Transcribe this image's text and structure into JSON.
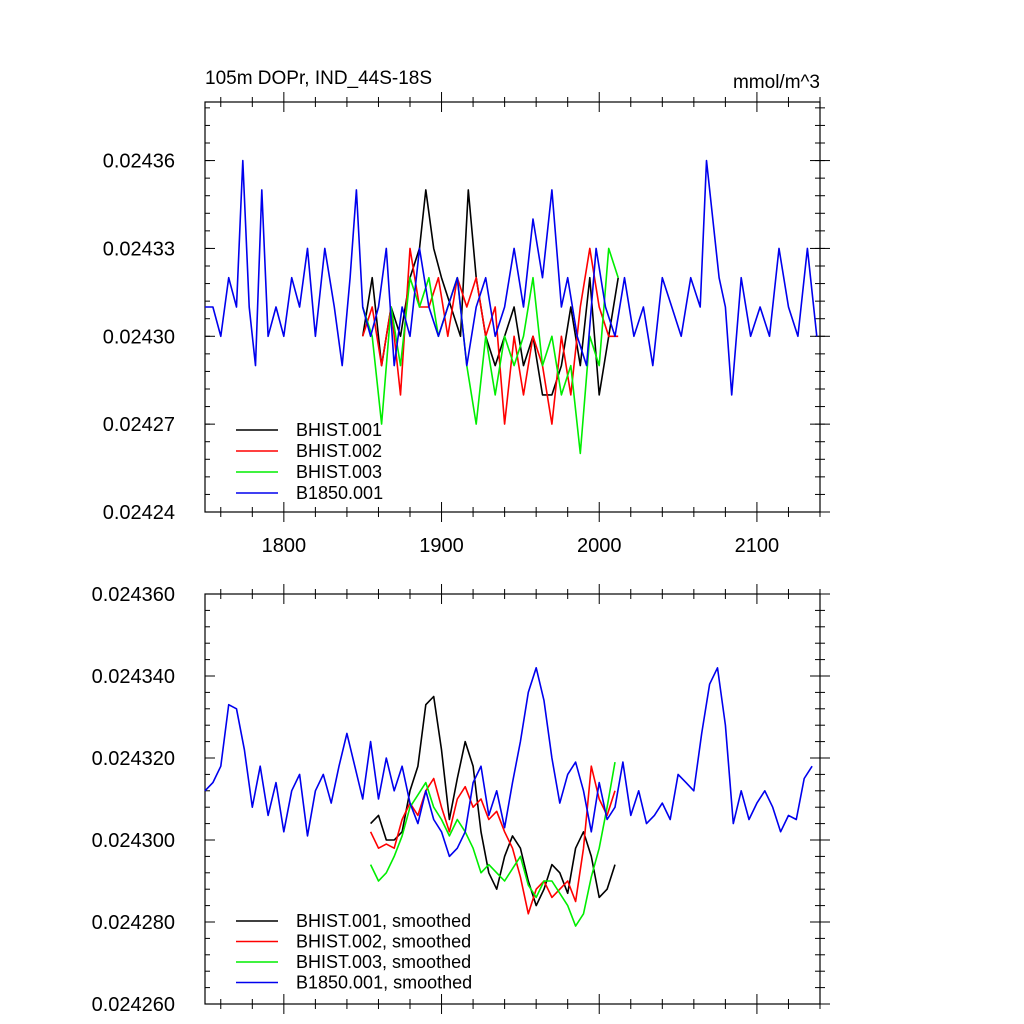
{
  "chart_data": [
    {
      "type": "line",
      "title_left": "105m DOPr, IND_44S-18S",
      "title_right": "mmol/m^3",
      "xlabel": "",
      "ylabel": "",
      "xlim": [
        1750,
        2140
      ],
      "ylim": [
        0.02424,
        0.02438
      ],
      "xticks": [
        1800,
        1900,
        2000,
        2100
      ],
      "xtick_labels": [
        "1800",
        "1900",
        "2000",
        "2100"
      ],
      "yticks": [
        0.02424,
        0.02427,
        0.0243,
        0.02433,
        0.02436
      ],
      "ytick_labels": [
        "0.02424",
        "0.02427",
        "0.02430",
        "0.02433",
        "0.02436"
      ],
      "legend_position": "bottom-left",
      "series": [
        {
          "name": "BHIST.001",
          "color": "#000000",
          "x": [
            1850,
            1856,
            1862,
            1868,
            1874,
            1880,
            1886,
            1890,
            1895,
            1900,
            1906,
            1912,
            1917,
            1922,
            1928,
            1934,
            1940,
            1946,
            1952,
            1958,
            1964,
            1970,
            1976,
            1982,
            1988,
            1994,
            2000,
            2006,
            2012
          ],
          "values": [
            0.0243,
            0.02432,
            0.02429,
            0.02431,
            0.0243,
            0.02432,
            0.02433,
            0.02435,
            0.02433,
            0.02432,
            0.02431,
            0.0243,
            0.02435,
            0.02432,
            0.0243,
            0.02429,
            0.0243,
            0.02431,
            0.02429,
            0.0243,
            0.02428,
            0.02428,
            0.02429,
            0.02431,
            0.02429,
            0.02432,
            0.02428,
            0.0243,
            0.02432
          ]
        },
        {
          "name": "BHIST.002",
          "color": "#ff0000",
          "x": [
            1850,
            1856,
            1862,
            1868,
            1874,
            1880,
            1886,
            1892,
            1898,
            1904,
            1910,
            1916,
            1922,
            1928,
            1934,
            1940,
            1946,
            1952,
            1958,
            1964,
            1970,
            1976,
            1982,
            1988,
            1994,
            2000,
            2006,
            2012
          ],
          "values": [
            0.0243,
            0.02431,
            0.02429,
            0.02431,
            0.02428,
            0.02433,
            0.02431,
            0.02431,
            0.02432,
            0.0243,
            0.02432,
            0.02431,
            0.02432,
            0.0243,
            0.02431,
            0.02427,
            0.0243,
            0.02428,
            0.0243,
            0.02429,
            0.02427,
            0.0243,
            0.02428,
            0.02431,
            0.02433,
            0.02431,
            0.0243,
            0.0243
          ]
        },
        {
          "name": "BHIST.003",
          "color": "#00ee00",
          "x": [
            1850,
            1856,
            1862,
            1868,
            1874,
            1880,
            1886,
            1892,
            1898,
            1904,
            1910,
            1916,
            1922,
            1928,
            1934,
            1940,
            1946,
            1952,
            1958,
            1964,
            1970,
            1976,
            1982,
            1988,
            1994,
            2000,
            2006,
            2012
          ],
          "values": [
            0.02431,
            0.0243,
            0.02427,
            0.02431,
            0.02429,
            0.02432,
            0.02431,
            0.02432,
            0.0243,
            0.02431,
            0.02432,
            0.02429,
            0.02427,
            0.0243,
            0.02428,
            0.0243,
            0.02429,
            0.0243,
            0.02432,
            0.02429,
            0.0243,
            0.02428,
            0.02429,
            0.02426,
            0.0243,
            0.02429,
            0.02433,
            0.02432
          ]
        },
        {
          "name": "B1850.001",
          "color": "#0000ee",
          "x": [
            1750,
            1755,
            1760,
            1765,
            1770,
            1774,
            1778,
            1782,
            1786,
            1790,
            1795,
            1800,
            1805,
            1810,
            1815,
            1820,
            1826,
            1832,
            1837,
            1842,
            1846,
            1850,
            1855,
            1860,
            1865,
            1870,
            1875,
            1880,
            1886,
            1892,
            1898,
            1904,
            1910,
            1916,
            1922,
            1928,
            1934,
            1940,
            1946,
            1952,
            1958,
            1964,
            1970,
            1976,
            1980,
            1986,
            1992,
            1998,
            2004,
            2010,
            2016,
            2022,
            2028,
            2034,
            2040,
            2046,
            2052,
            2058,
            2064,
            2068,
            2072,
            2076,
            2080,
            2084,
            2090,
            2096,
            2102,
            2108,
            2114,
            2120,
            2126,
            2132,
            2138
          ],
          "values": [
            0.02431,
            0.02431,
            0.0243,
            0.02432,
            0.02431,
            0.02436,
            0.02431,
            0.02429,
            0.02435,
            0.0243,
            0.02431,
            0.0243,
            0.02432,
            0.02431,
            0.02433,
            0.0243,
            0.02433,
            0.02431,
            0.02429,
            0.02432,
            0.02435,
            0.02431,
            0.0243,
            0.02431,
            0.02433,
            0.02429,
            0.02431,
            0.0243,
            0.02433,
            0.02431,
            0.0243,
            0.02431,
            0.02432,
            0.02429,
            0.02431,
            0.02432,
            0.0243,
            0.02431,
            0.02433,
            0.02431,
            0.02434,
            0.02432,
            0.02435,
            0.02431,
            0.02432,
            0.0243,
            0.02429,
            0.02433,
            0.02431,
            0.0243,
            0.02432,
            0.0243,
            0.02431,
            0.02429,
            0.02432,
            0.02431,
            0.0243,
            0.02432,
            0.02431,
            0.02436,
            0.02434,
            0.02432,
            0.02431,
            0.02428,
            0.02432,
            0.0243,
            0.02431,
            0.0243,
            0.02433,
            0.02431,
            0.0243,
            0.02433,
            0.0243
          ]
        }
      ]
    },
    {
      "type": "line",
      "xlabel": "",
      "ylabel": "",
      "xlim": [
        1750,
        2140
      ],
      "ylim": [
        0.02426,
        0.02436
      ],
      "xticks": [
        1800,
        1900,
        2000,
        2100
      ],
      "yticks": [
        0.02426,
        0.02428,
        0.0243,
        0.02432,
        0.02434,
        0.02436
      ],
      "ytick_labels": [
        "0.024260",
        "0.024280",
        "0.024300",
        "0.024320",
        "0.024340",
        "0.024360"
      ],
      "legend_position": "bottom-left",
      "series": [
        {
          "name": "BHIST.001, smoothed",
          "color": "#000000",
          "x": [
            1855,
            1860,
            1865,
            1870,
            1875,
            1880,
            1885,
            1890,
            1895,
            1900,
            1905,
            1910,
            1915,
            1920,
            1925,
            1930,
            1935,
            1940,
            1945,
            1950,
            1955,
            1960,
            1965,
            1970,
            1975,
            1980,
            1985,
            1990,
            1995,
            2000,
            2005,
            2010
          ],
          "values": [
            0.024304,
            0.024306,
            0.0243,
            0.0243,
            0.024302,
            0.024312,
            0.024318,
            0.024333,
            0.024335,
            0.024322,
            0.024305,
            0.024315,
            0.024324,
            0.024318,
            0.024302,
            0.024292,
            0.024288,
            0.024296,
            0.024301,
            0.024298,
            0.02429,
            0.024284,
            0.024288,
            0.024294,
            0.024292,
            0.024287,
            0.024298,
            0.024302,
            0.024296,
            0.024286,
            0.024288,
            0.024294
          ]
        },
        {
          "name": "BHIST.002, smoothed",
          "color": "#ff0000",
          "x": [
            1855,
            1860,
            1865,
            1870,
            1875,
            1880,
            1885,
            1890,
            1895,
            1900,
            1905,
            1910,
            1915,
            1920,
            1925,
            1930,
            1935,
            1940,
            1945,
            1950,
            1955,
            1960,
            1965,
            1970,
            1975,
            1980,
            1985,
            1990,
            1995,
            2000,
            2005,
            2010
          ],
          "values": [
            0.024302,
            0.024298,
            0.024299,
            0.024298,
            0.024305,
            0.024309,
            0.024306,
            0.024312,
            0.024315,
            0.024308,
            0.024302,
            0.02431,
            0.024313,
            0.024308,
            0.02431,
            0.024305,
            0.024307,
            0.024302,
            0.024298,
            0.024291,
            0.024282,
            0.024288,
            0.02429,
            0.024286,
            0.024288,
            0.02429,
            0.024285,
            0.024298,
            0.024318,
            0.02431,
            0.024306,
            0.024312
          ]
        },
        {
          "name": "BHIST.003, smoothed",
          "color": "#00ee00",
          "x": [
            1855,
            1860,
            1865,
            1870,
            1875,
            1880,
            1885,
            1890,
            1895,
            1900,
            1905,
            1910,
            1915,
            1920,
            1925,
            1930,
            1935,
            1940,
            1945,
            1950,
            1955,
            1960,
            1965,
            1970,
            1975,
            1980,
            1985,
            1990,
            1995,
            2000,
            2005,
            2010
          ],
          "values": [
            0.024294,
            0.02429,
            0.024292,
            0.024296,
            0.024301,
            0.024308,
            0.024311,
            0.024314,
            0.024308,
            0.024305,
            0.024301,
            0.024305,
            0.024302,
            0.024298,
            0.024292,
            0.024294,
            0.024292,
            0.02429,
            0.024293,
            0.024296,
            0.024289,
            0.024286,
            0.02429,
            0.02429,
            0.024287,
            0.024284,
            0.024279,
            0.024282,
            0.024291,
            0.024298,
            0.024308,
            0.024319
          ]
        },
        {
          "name": "B1850.001, smoothed",
          "color": "#0000ee",
          "x": [
            1750,
            1755,
            1760,
            1765,
            1770,
            1775,
            1780,
            1785,
            1790,
            1795,
            1800,
            1805,
            1810,
            1815,
            1820,
            1825,
            1830,
            1835,
            1840,
            1845,
            1850,
            1855,
            1860,
            1865,
            1870,
            1875,
            1880,
            1885,
            1890,
            1895,
            1900,
            1905,
            1910,
            1915,
            1920,
            1925,
            1930,
            1935,
            1940,
            1945,
            1950,
            1955,
            1960,
            1965,
            1970,
            1975,
            1980,
            1985,
            1990,
            1995,
            2000,
            2005,
            2010,
            2015,
            2020,
            2025,
            2030,
            2035,
            2040,
            2045,
            2050,
            2055,
            2060,
            2065,
            2070,
            2075,
            2080,
            2085,
            2090,
            2095,
            2100,
            2105,
            2110,
            2115,
            2120,
            2125,
            2130,
            2135
          ],
          "values": [
            0.024312,
            0.024314,
            0.024318,
            0.024333,
            0.024332,
            0.024322,
            0.024308,
            0.024318,
            0.024306,
            0.024314,
            0.024302,
            0.024312,
            0.024316,
            0.024301,
            0.024312,
            0.024316,
            0.024309,
            0.024318,
            0.024326,
            0.024318,
            0.02431,
            0.024324,
            0.02431,
            0.02432,
            0.024312,
            0.024318,
            0.024309,
            0.024304,
            0.024312,
            0.024305,
            0.024302,
            0.024296,
            0.024298,
            0.024302,
            0.024314,
            0.024318,
            0.024306,
            0.024312,
            0.024303,
            0.024314,
            0.024324,
            0.024336,
            0.024342,
            0.024334,
            0.02432,
            0.024309,
            0.024316,
            0.024319,
            0.024312,
            0.024302,
            0.024314,
            0.024305,
            0.024308,
            0.024319,
            0.024306,
            0.024312,
            0.024304,
            0.024306,
            0.024309,
            0.024305,
            0.024316,
            0.024314,
            0.024312,
            0.024326,
            0.024338,
            0.024342,
            0.024328,
            0.024304,
            0.024312,
            0.024305,
            0.024309,
            0.024312,
            0.024308,
            0.024302,
            0.024306,
            0.024305,
            0.024315,
            0.024318
          ]
        }
      ]
    }
  ]
}
